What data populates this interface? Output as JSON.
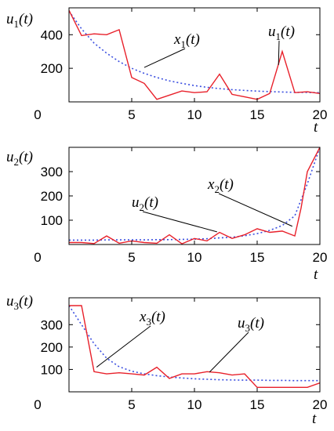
{
  "colors": {
    "state_series": "#3b4fe0",
    "control_series": "#e8202a",
    "axes": "#000000"
  },
  "chart_data": [
    {
      "type": "line",
      "ylabel": "u1(t)",
      "xlabel": "t",
      "xlim": [
        0,
        20
      ],
      "ylim": [
        0,
        560
      ],
      "xticks": [
        5,
        10,
        15,
        20
      ],
      "yticks": [
        200,
        400
      ],
      "y_origin_label": "0",
      "grid": false,
      "series": [
        {
          "name": "x1(t)",
          "style": "dotted",
          "x": [
            0,
            1,
            2,
            3,
            4,
            5,
            6,
            7,
            8,
            9,
            10,
            11,
            12,
            13,
            14,
            15,
            16,
            17,
            18,
            19,
            20
          ],
          "values": [
            540,
            435,
            350,
            290,
            240,
            200,
            170,
            145,
            125,
            110,
            97,
            87,
            79,
            73,
            68,
            64,
            61,
            59,
            57,
            56,
            55
          ]
        },
        {
          "name": "u1(t)",
          "style": "solid",
          "x": [
            0,
            1,
            2,
            3,
            4,
            5,
            6,
            7,
            8,
            9,
            10,
            11,
            12,
            13,
            14,
            15,
            16,
            17,
            18,
            19,
            20
          ],
          "values": [
            545,
            395,
            405,
            400,
            430,
            145,
            110,
            15,
            40,
            65,
            55,
            60,
            165,
            45,
            30,
            15,
            50,
            300,
            55,
            60,
            50
          ]
        }
      ],
      "annotations": [
        {
          "text": "x1(t)",
          "points_to": [
            6,
            205
          ]
        },
        {
          "text": "u1(t)",
          "points_to": [
            16.7,
            220
          ]
        }
      ]
    },
    {
      "type": "line",
      "ylabel": "u2(t)",
      "xlabel": "t",
      "xlim": [
        0,
        20
      ],
      "ylim": [
        0,
        400
      ],
      "xticks": [
        5,
        10,
        15,
        20
      ],
      "yticks": [
        100,
        200,
        300
      ],
      "y_origin_label": "0",
      "grid": false,
      "series": [
        {
          "name": "x2(t)",
          "style": "dotted",
          "x": [
            0,
            1,
            2,
            3,
            4,
            5,
            6,
            7,
            8,
            9,
            10,
            11,
            12,
            13,
            14,
            15,
            16,
            17,
            18,
            19,
            20
          ],
          "values": [
            18,
            18,
            18,
            19,
            19,
            19,
            19,
            20,
            20,
            21,
            22,
            24,
            27,
            30,
            36,
            45,
            58,
            78,
            118,
            250,
            400
          ]
        },
        {
          "name": "u2(t)",
          "style": "solid",
          "x": [
            0,
            1,
            2,
            3,
            4,
            5,
            6,
            7,
            8,
            9,
            10,
            11,
            12,
            13,
            14,
            15,
            16,
            17,
            18,
            18.5,
            19,
            20
          ],
          "values": [
            8,
            8,
            4,
            35,
            5,
            15,
            8,
            5,
            40,
            3,
            25,
            15,
            50,
            25,
            40,
            65,
            50,
            55,
            35,
            150,
            300,
            400
          ]
        }
      ],
      "annotations": [
        {
          "text": "u2(t)",
          "points_to": [
            11.8,
            52
          ]
        },
        {
          "text": "x2(t)",
          "points_to": [
            17.8,
            75
          ]
        }
      ]
    },
    {
      "type": "line",
      "ylabel": "u3(t)",
      "xlabel": "t",
      "xlim": [
        0,
        20
      ],
      "ylim": [
        0,
        420
      ],
      "xticks": [
        5,
        10,
        15,
        20
      ],
      "yticks": [
        100,
        200,
        300
      ],
      "y_origin_label": "0",
      "grid": false,
      "series": [
        {
          "name": "x3(t)",
          "style": "dotted",
          "x": [
            0,
            1,
            2,
            3,
            4,
            5,
            6,
            7,
            8,
            9,
            10,
            11,
            12,
            13,
            14,
            15,
            16,
            17,
            18,
            19,
            20
          ],
          "values": [
            385,
            300,
            215,
            150,
            112,
            92,
            80,
            72,
            66,
            62,
            58,
            56,
            54,
            53,
            52,
            52,
            51,
            51,
            50,
            50,
            50
          ]
        },
        {
          "name": "u3(t)",
          "style": "solid",
          "x": [
            0,
            1,
            2,
            3,
            4,
            5,
            6,
            7,
            8,
            9,
            10,
            11,
            12,
            13,
            14,
            15,
            16,
            17,
            18,
            19,
            20
          ],
          "values": [
            385,
            385,
            90,
            80,
            85,
            80,
            75,
            110,
            60,
            80,
            80,
            90,
            85,
            75,
            80,
            20,
            20,
            20,
            20,
            20,
            40
          ]
        }
      ],
      "annotations": [
        {
          "text": "x3(t)",
          "points_to": [
            2.2,
            110
          ]
        },
        {
          "text": "u3(t)",
          "points_to": [
            11.2,
            88
          ]
        }
      ]
    }
  ]
}
